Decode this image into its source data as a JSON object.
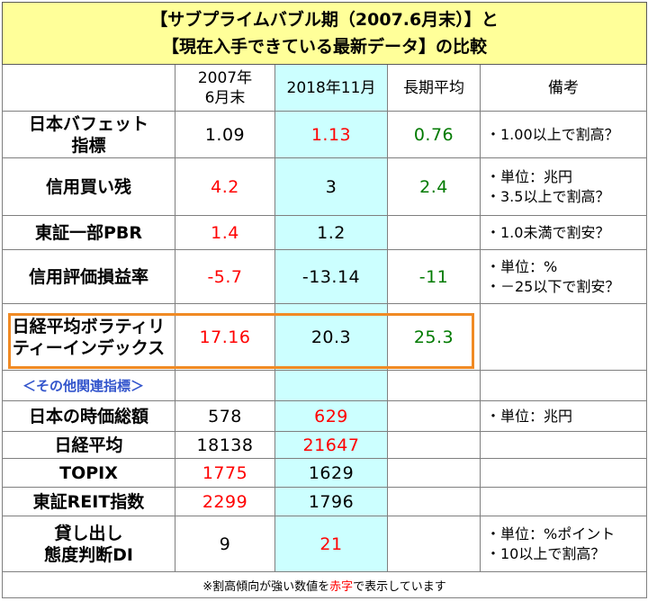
{
  "title": {
    "line1": "【サブプライムバブル期（2007.6月末）】と",
    "line2": "【現在入手できている最新データ】の比較"
  },
  "header": {
    "col2007_line1": "2007年",
    "col2007_line2": "6月末",
    "col2018": "2018年11月",
    "col_avg": "長期平均",
    "col_note": "備考"
  },
  "rows": {
    "buffett": {
      "label1": "日本バフェット",
      "label2": "指標",
      "v2007": "1.09",
      "v2018": "1.13",
      "avg": "0.76",
      "note1": "・1.00以上で割高？"
    },
    "margin": {
      "label1": "信用買い残",
      "v2007": "4.2",
      "v2018": "3",
      "avg": "2.4",
      "note1": "・単位：兆円",
      "note2": "・3.5以上で割高？"
    },
    "pbr": {
      "label1": "東証一部PBR",
      "v2007": "1.4",
      "v2018": "1.2",
      "note1": "・1.0未満で割安？"
    },
    "valuation": {
      "label1": "信用評価損益率",
      "v2007": "-5.7",
      "v2018": "-13.14",
      "avg": "-11",
      "note1": "・単位：%",
      "note2": "・－25以下で割安？"
    },
    "vix": {
      "label1": "日経平均ボラティリ",
      "label2": "ティーインデックス",
      "v2007": "17.16",
      "v2018": "20.3",
      "avg": "25.3"
    },
    "other_header": "＜その他関連指標＞",
    "market_cap": {
      "label1": "日本の時価総額",
      "v2007": "578",
      "v2018": "629",
      "note1": "・単位：兆円"
    },
    "nikkei": {
      "label1": "日経平均",
      "v2007": "18138",
      "v2018": "21647"
    },
    "topix": {
      "label1": "TOPIX",
      "v2007": "1775",
      "v2018": "1629"
    },
    "reit": {
      "label1": "東証REIT指数",
      "v2007": "2299",
      "v2018": "1796"
    },
    "lending": {
      "label1": "貸し出し",
      "label2": "態度判断DI",
      "v2007": "9",
      "v2018": "21",
      "note1": "・単位：%ポイント",
      "note2": "・10以上で割高？"
    }
  },
  "footer": {
    "prefix": "※割高傾向が強い数値を",
    "red_word": "赤字",
    "suffix": "で表示しています"
  },
  "colors": {
    "title_bg": "#ffff99",
    "col2018_bg": "#ccffff",
    "red": "#ff0000",
    "green": "#007a00",
    "highlight_border": "#f08a24",
    "subheader": "#3355cc"
  }
}
